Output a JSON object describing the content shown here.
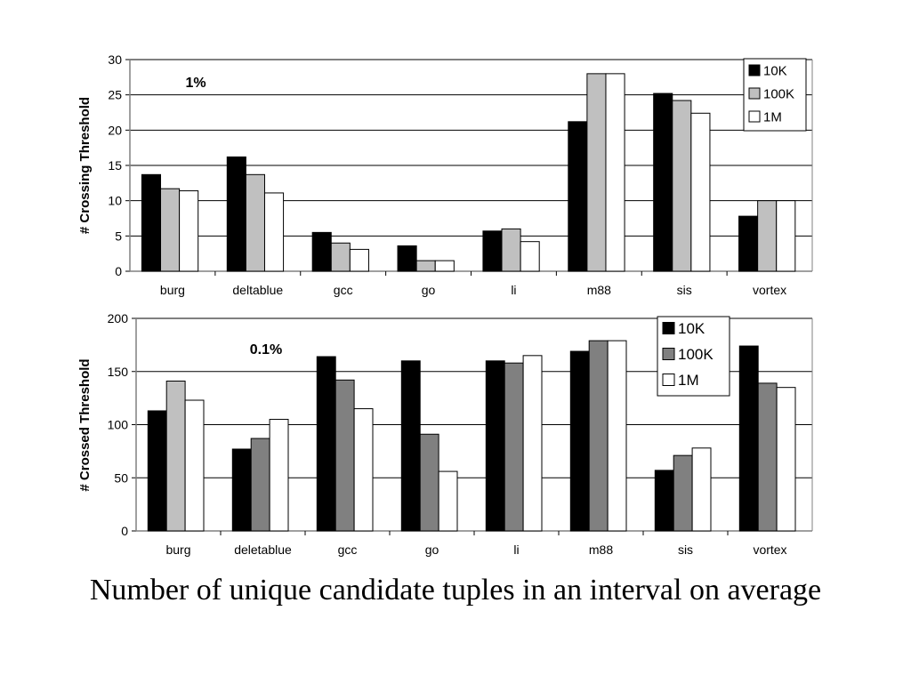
{
  "caption": "Number of unique candidate tuples in an interval on average",
  "chart_data": [
    {
      "type": "bar",
      "annotation": "1%",
      "ylabel": "# Crossing Threshold",
      "ylim": [
        0,
        30
      ],
      "yticks": [
        0,
        5,
        10,
        15,
        20,
        25,
        30
      ],
      "grid": true,
      "legend_position": "top-right",
      "categories": [
        "burg",
        "deltablue",
        "gcc",
        "go",
        "li",
        "m88",
        "sis",
        "vortex"
      ],
      "series": [
        {
          "name": "10K",
          "color": "#000000",
          "values": [
            13.7,
            16.2,
            5.5,
            3.6,
            5.7,
            21.2,
            25.2,
            7.8
          ]
        },
        {
          "name": "100K",
          "color": "#c0c0c0",
          "values": [
            11.7,
            13.7,
            4.0,
            1.5,
            6.0,
            28.0,
            24.2,
            10.0
          ]
        },
        {
          "name": "1M",
          "color": "#ffffff",
          "values": [
            11.4,
            11.1,
            3.1,
            1.5,
            4.2,
            28.0,
            22.4,
            10.0
          ]
        }
      ]
    },
    {
      "type": "bar",
      "annotation": "0.1%",
      "ylabel": "# Crossed Threshold",
      "ylim": [
        0,
        200
      ],
      "yticks": [
        0,
        50,
        100,
        150,
        200
      ],
      "grid": true,
      "legend_position": "top-right",
      "categories": [
        "burg",
        "deletablue",
        "gcc",
        "go",
        "li",
        "m88",
        "sis",
        "vortex"
      ],
      "legend_colors": [
        "#000000",
        "#808080",
        "#ffffff"
      ],
      "series": [
        {
          "name": "10K",
          "color": "#000000",
          "values": [
            113,
            77,
            164,
            160,
            160,
            169,
            57,
            174
          ]
        },
        {
          "name": "100K",
          "color": "#808080",
          "colors": [
            "#c0c0c0",
            "#808080",
            "#808080",
            "#808080",
            "#808080",
            "#808080",
            "#808080",
            "#808080"
          ],
          "values": [
            141,
            87,
            142,
            91,
            158,
            179,
            71,
            139
          ]
        },
        {
          "name": "1M",
          "color": "#ffffff",
          "values": [
            123,
            105,
            115,
            56,
            165,
            179,
            78,
            135
          ]
        }
      ]
    }
  ]
}
